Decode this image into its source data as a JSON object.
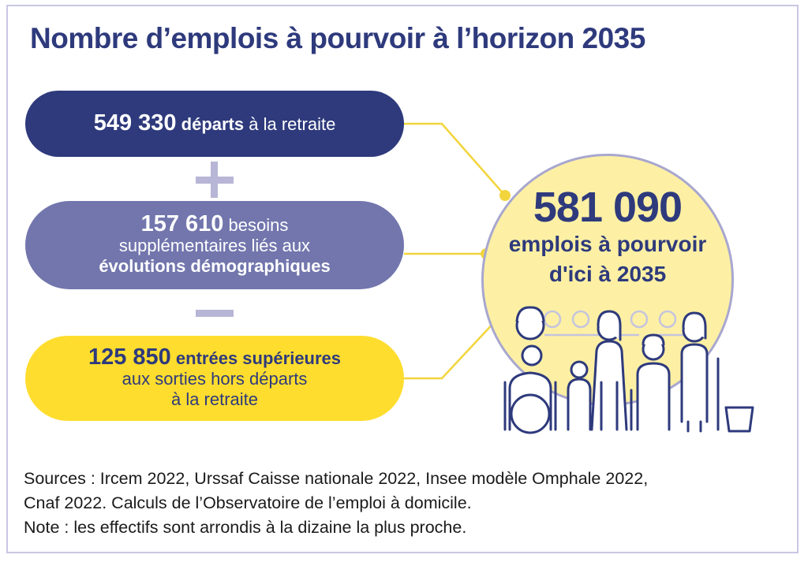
{
  "title": "Nombre d’emplois à pourvoir à l’horizon 2035",
  "boxes": [
    {
      "number": "549 330",
      "text_bold": "départs",
      "text": "à la retraite",
      "color": "#2e3a7c"
    },
    {
      "number": "157 610",
      "text": "besoins",
      "line2": "supplémentaires liés aux",
      "line3": "évolutions démographiques",
      "color": "#7276ad"
    },
    {
      "number": "125 850",
      "text_bold": "entrées supérieures",
      "line2": "aux sorties hors départs",
      "line3": "à la retraite",
      "color": "#ffdd2e"
    }
  ],
  "operators": [
    "plus-icon",
    "minus-icon"
  ],
  "total": {
    "number": "581 090",
    "line1": "emplois à pourvoir",
    "line2": "d'ici à 2035",
    "fill": "#fdf0a4"
  },
  "illustration": "people-group-icon",
  "sources": {
    "line1": "Sources : Ircem 2022, Urssaf Caisse nationale 2022,  Insee modèle Omphale 2022,",
    "line2": "Cnaf 2022.  Calculs de l’Observatoire de l’emploi à domicile.",
    "line3": "Note : les effectifs sont arrondis à la dizaine la plus proche."
  },
  "colors": {
    "navy": "#2e3a7c",
    "purple": "#7276ad",
    "yellow": "#ffdd2e",
    "connector": "#f2d53c"
  }
}
